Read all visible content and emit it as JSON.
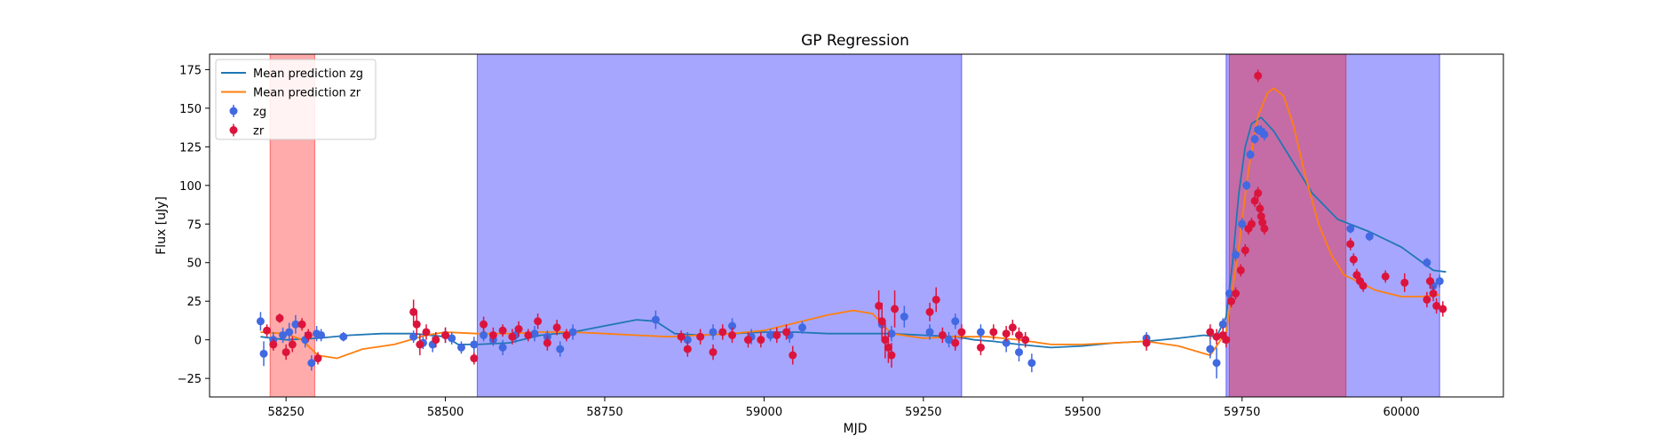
{
  "chart_data": {
    "type": "scatter",
    "title": "GP Regression",
    "xlabel": "MJD",
    "ylabel": "Flux [uJy]",
    "xlim": [
      58130,
      60160
    ],
    "ylim": [
      -37,
      185
    ],
    "x_ticks": [
      58250,
      58500,
      58750,
      59000,
      59250,
      59500,
      59750,
      60000
    ],
    "y_ticks": [
      -25,
      0,
      25,
      50,
      75,
      100,
      125,
      150,
      175
    ],
    "grid": false,
    "legend_position": "top-left",
    "shaded_regions": [
      {
        "x": [
          58225,
          58295
        ],
        "color": "#ff0000",
        "alpha": 0.33
      },
      {
        "x": [
          58550,
          59310
        ],
        "color": "#0000ff",
        "alpha": 0.35
      },
      {
        "x": [
          59725,
          60060
        ],
        "color": "#0000ff",
        "alpha": 0.35
      },
      {
        "x": [
          59730,
          59913
        ],
        "color": "#ff0000",
        "alpha": 0.35
      }
    ],
    "lines": [
      {
        "name": "Mean prediction zg",
        "color": "#1f77b4",
        "x": [
          58210,
          58250,
          58300,
          58350,
          58400,
          58450,
          58500,
          58520,
          58550,
          58600,
          58650,
          58700,
          58750,
          58800,
          58830,
          58860,
          58900,
          58950,
          59000,
          59050,
          59100,
          59150,
          59200,
          59250,
          59300,
          59330,
          59360,
          59400,
          59450,
          59500,
          59550,
          59600,
          59650,
          59690,
          59710,
          59725,
          59735,
          59745,
          59755,
          59765,
          59780,
          59800,
          59830,
          59860,
          59900,
          59950,
          60000,
          60050,
          60070
        ],
        "y": [
          2,
          0,
          1,
          3,
          4,
          4,
          2,
          -3,
          -3,
          -2,
          3,
          5,
          9,
          13,
          12,
          4,
          3,
          4,
          5,
          5,
          4,
          4,
          4,
          3,
          2,
          0,
          -1,
          -3,
          -5,
          -4,
          -2,
          -1,
          1,
          3,
          2,
          15,
          50,
          95,
          125,
          140,
          144,
          135,
          115,
          95,
          78,
          70,
          60,
          45,
          44
        ]
      },
      {
        "name": "Mean prediction zr",
        "color": "#ff7f0e",
        "x": [
          58210,
          58250,
          58275,
          58300,
          58330,
          58370,
          58420,
          58470,
          58500,
          58550,
          58600,
          58650,
          58700,
          58750,
          58800,
          58850,
          58900,
          58950,
          59000,
          59050,
          59100,
          59140,
          59170,
          59200,
          59250,
          59300,
          59350,
          59400,
          59450,
          59500,
          59550,
          59600,
          59650,
          59700,
          59725,
          59745,
          59760,
          59775,
          59790,
          59800,
          59815,
          59830,
          59850,
          59870,
          59890,
          59910,
          59930,
          59960,
          60000,
          60030,
          60060
        ],
        "y": [
          5,
          4,
          0,
          -10,
          -12,
          -6,
          -3,
          3,
          5,
          4,
          4,
          5,
          5,
          4,
          3,
          2,
          3,
          4,
          6,
          11,
          16,
          19,
          17,
          4,
          1,
          2,
          2,
          0,
          -3,
          -3,
          -2,
          -1,
          -4,
          -10,
          5,
          60,
          110,
          145,
          160,
          163,
          158,
          140,
          105,
          75,
          55,
          42,
          38,
          32,
          28,
          28,
          29
        ]
      }
    ],
    "series": [
      {
        "name": "zg",
        "color": "#4169e1",
        "x": [
          58210,
          58215,
          58230,
          58245,
          58255,
          58265,
          58280,
          58290,
          58298,
          58305,
          58340,
          58450,
          58465,
          58480,
          58500,
          58510,
          58525,
          58545,
          58560,
          58575,
          58590,
          58610,
          58640,
          58660,
          58680,
          58700,
          58830,
          58880,
          58920,
          58950,
          58980,
          59010,
          59040,
          59060,
          59185,
          59200,
          59220,
          59260,
          59290,
          59300,
          59340,
          59380,
          59400,
          59420,
          59600,
          59700,
          59710,
          59720,
          59730,
          59740,
          59750,
          59757,
          59763,
          59770,
          59775,
          59780,
          59785,
          59920,
          59950,
          60040,
          60050,
          60060
        ],
        "y": [
          12,
          -9,
          0,
          3,
          5,
          10,
          0,
          -15,
          4,
          3,
          2,
          2,
          -2,
          -3,
          3,
          1,
          -5,
          -3,
          3,
          0,
          -5,
          3,
          4,
          2,
          -6,
          5,
          13,
          0,
          5,
          9,
          2,
          3,
          3,
          8,
          10,
          4,
          15,
          5,
          0,
          12,
          5,
          -2,
          -8,
          -15,
          1,
          -6,
          -15,
          10,
          30,
          55,
          75,
          100,
          120,
          130,
          136,
          135,
          133,
          72,
          67,
          50,
          35,
          38
        ],
        "err": [
          6,
          8,
          5,
          5,
          6,
          6,
          5,
          5,
          5,
          4,
          3,
          4,
          4,
          5,
          5,
          4,
          4,
          5,
          4,
          4,
          5,
          5,
          5,
          4,
          5,
          5,
          6,
          5,
          5,
          5,
          5,
          4,
          5,
          4,
          6,
          5,
          7,
          5,
          5,
          5,
          5,
          6,
          6,
          6,
          4,
          6,
          10,
          4,
          4,
          4,
          4,
          3,
          3,
          3,
          3,
          4,
          4,
          3,
          3,
          3,
          4,
          4
        ]
      },
      {
        "name": "zr",
        "color": "#dc143c",
        "x": [
          58220,
          58230,
          58240,
          58250,
          58260,
          58275,
          58285,
          58300,
          58450,
          58455,
          58460,
          58470,
          58485,
          58500,
          58545,
          58560,
          58575,
          58590,
          58605,
          58615,
          58630,
          58645,
          58660,
          58675,
          58690,
          58870,
          58880,
          58900,
          58920,
          58935,
          58950,
          58975,
          58995,
          59020,
          59035,
          59045,
          59180,
          59185,
          59190,
          59195,
          59200,
          59205,
          59260,
          59270,
          59280,
          59300,
          59310,
          59340,
          59360,
          59380,
          59390,
          59400,
          59410,
          59600,
          59700,
          59710,
          59720,
          59725,
          59733,
          59740,
          59748,
          59755,
          59760,
          59765,
          59770,
          59775,
          59778,
          59780,
          59782,
          59785,
          59920,
          59925,
          59930,
          59935,
          59940,
          59975,
          60005,
          60040,
          60045,
          60050,
          60055,
          60065
        ],
        "y": [
          6,
          -3,
          14,
          -8,
          -3,
          10,
          3,
          -12,
          18,
          10,
          -3,
          5,
          0,
          3,
          -12,
          10,
          3,
          6,
          2,
          7,
          3,
          12,
          -2,
          8,
          3,
          2,
          -6,
          2,
          -8,
          5,
          3,
          0,
          0,
          3,
          5,
          -10,
          22,
          12,
          0,
          -5,
          -10,
          20,
          18,
          26,
          3,
          -2,
          5,
          -5,
          5,
          4,
          8,
          3,
          0,
          -2,
          5,
          2,
          3,
          0,
          25,
          30,
          45,
          58,
          72,
          75,
          90,
          95,
          85,
          80,
          76,
          72,
          62,
          52,
          42,
          38,
          35,
          41,
          37,
          26,
          38,
          30,
          22,
          20
        ],
        "err": [
          4,
          4,
          3,
          5,
          5,
          4,
          4,
          4,
          8,
          7,
          7,
          5,
          5,
          5,
          4,
          5,
          5,
          4,
          5,
          5,
          4,
          5,
          5,
          5,
          4,
          4,
          5,
          5,
          5,
          5,
          5,
          5,
          5,
          5,
          5,
          6,
          10,
          12,
          12,
          10,
          8,
          12,
          6,
          8,
          5,
          5,
          5,
          5,
          5,
          5,
          5,
          5,
          5,
          5,
          5,
          5,
          5,
          5,
          4,
          4,
          4,
          4,
          4,
          4,
          4,
          4,
          4,
          4,
          4,
          4,
          4,
          4,
          4,
          4,
          4,
          4,
          6,
          5,
          5,
          5,
          5,
          5
        ]
      },
      {
        "name": "zr-outlier",
        "color": "#dc143c",
        "x": [
          59775
        ],
        "y": [
          171
        ],
        "err": [
          4
        ]
      }
    ]
  },
  "legend": [
    {
      "label": "Mean prediction zg",
      "kind": "line",
      "color": "#1f77b4"
    },
    {
      "label": "Mean prediction zr",
      "kind": "line",
      "color": "#ff7f0e"
    },
    {
      "label": "zg",
      "kind": "marker",
      "color": "#4169e1"
    },
    {
      "label": "zr",
      "kind": "marker",
      "color": "#dc143c"
    }
  ]
}
